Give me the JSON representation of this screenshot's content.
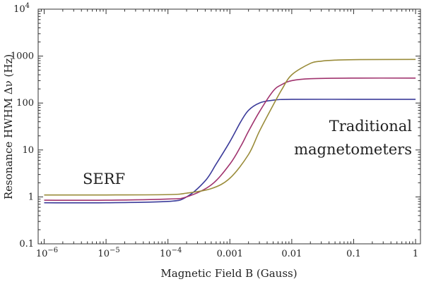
{
  "chart_data": {
    "type": "line",
    "title": "",
    "xlabel": "Magnetic Field B (Gauss)",
    "ylabel": "Resonance HWHM Δν (Hz)",
    "xscale": "log",
    "yscale": "log",
    "xlim": [
      8e-07,
      1.2
    ],
    "ylim": [
      0.1,
      10000
    ],
    "grid": false,
    "legend": "none",
    "x_ticks": [
      {
        "value": 1e-06,
        "label": "10",
        "exp": "−6"
      },
      {
        "value": 1e-05,
        "label": "10",
        "exp": "−5"
      },
      {
        "value": 0.0001,
        "label": "10",
        "exp": "−4"
      },
      {
        "value": 0.001,
        "label": "0.001",
        "exp": ""
      },
      {
        "value": 0.01,
        "label": "0.01",
        "exp": ""
      },
      {
        "value": 0.1,
        "label": "0.1",
        "exp": ""
      },
      {
        "value": 1,
        "label": "1",
        "exp": ""
      }
    ],
    "y_ticks": [
      {
        "value": 0.1,
        "label": "0.1",
        "exp": ""
      },
      {
        "value": 1,
        "label": "1",
        "exp": ""
      },
      {
        "value": 10,
        "label": "10",
        "exp": ""
      },
      {
        "value": 100,
        "label": "100",
        "exp": ""
      },
      {
        "value": 1000,
        "label": "1000",
        "exp": ""
      },
      {
        "value": 10000,
        "label": "10",
        "exp": "4"
      }
    ],
    "series": [
      {
        "color": "#3b3b9a",
        "x": [
          1e-06,
          1e-05,
          0.0001,
          0.0002,
          0.0004,
          0.0006,
          0.001,
          0.0015,
          0.002,
          0.003,
          0.005,
          0.01,
          0.1,
          1
        ],
        "values": [
          0.75,
          0.75,
          0.8,
          1.0,
          2.2,
          5,
          15,
          40,
          70,
          100,
          115,
          120,
          120,
          120
        ]
      },
      {
        "color": "#a0336e",
        "x": [
          1e-06,
          1e-05,
          0.0001,
          0.0002,
          0.0005,
          0.001,
          0.0015,
          0.002,
          0.003,
          0.005,
          0.007,
          0.01,
          0.02,
          0.1,
          1
        ],
        "values": [
          0.85,
          0.85,
          0.9,
          1.0,
          1.8,
          5,
          12,
          25,
          65,
          180,
          250,
          300,
          330,
          340,
          340
        ]
      },
      {
        "color": "#9a8c3a",
        "x": [
          1e-06,
          1e-05,
          0.0001,
          0.0002,
          0.0005,
          0.001,
          0.002,
          0.003,
          0.005,
          0.007,
          0.01,
          0.02,
          0.03,
          0.05,
          0.1,
          1
        ],
        "values": [
          1.1,
          1.1,
          1.12,
          1.2,
          1.5,
          2.5,
          8,
          25,
          90,
          200,
          400,
          700,
          780,
          820,
          840,
          850
        ]
      }
    ],
    "annotations": [
      {
        "id": "serf",
        "text": "SERF"
      },
      {
        "id": "trad1",
        "text": "Traditional"
      },
      {
        "id": "trad2",
        "text": "magnetometers"
      }
    ]
  }
}
